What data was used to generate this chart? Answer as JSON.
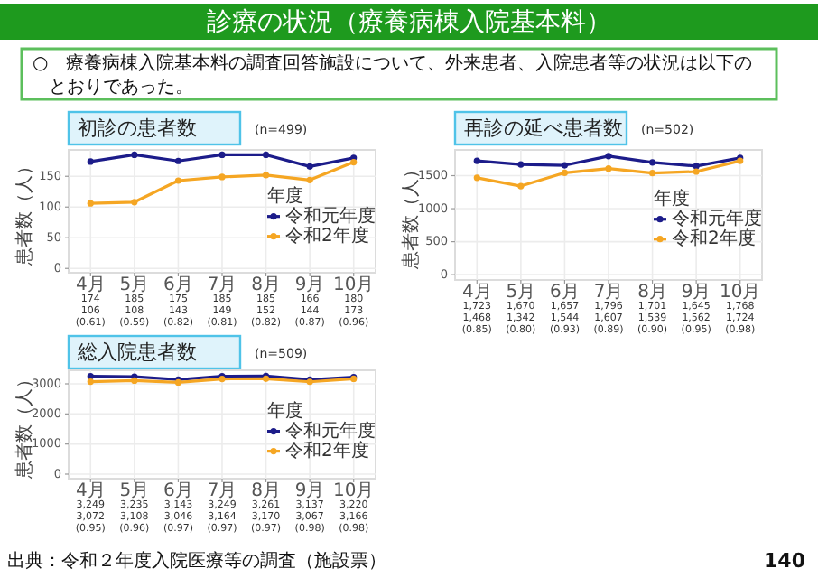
{
  "chart_data": [
    {
      "type": "line",
      "title": "初診の患者数",
      "subtitle": "(n=499)",
      "ylabel": "患者数（人）",
      "legend_title": "年度",
      "legend": "right",
      "grid": true,
      "marker": "circle",
      "categories": [
        "4月",
        "5月",
        "6月",
        "7月",
        "8月",
        "9月",
        "10月"
      ],
      "ylim": [
        -7,
        193
      ],
      "yticks": [
        0,
        50,
        100,
        150
      ],
      "series": [
        {
          "name": "令和元年度",
          "color": "#1c1c8a",
          "values": [
            174,
            185,
            175,
            185,
            185,
            166,
            180
          ],
          "value_labels": [
            "174",
            "185",
            "175",
            "185",
            "185",
            "166",
            "180"
          ]
        },
        {
          "name": "令和2年度",
          "color": "#f5a623",
          "values": [
            106,
            108,
            143,
            149,
            152,
            144,
            173
          ],
          "value_labels": [
            "106",
            "108",
            "143",
            "149",
            "152",
            "144",
            "173"
          ]
        }
      ],
      "annotations": [
        "診療の状況（療養病棟入院基本料）",
        "○　療養病棟入院基本料の調査回答施設について、外来患者、入院患者等の状況は以下のとおりであった。",
        "(0.61)",
        "(0.59)",
        "(0.82)",
        "(0.81)",
        "(0.82)",
        "(0.87)",
        "(0.96)"
      ]
    },
    {
      "type": "line",
      "title": "再診の延べ患者数",
      "subtitle": "(n=502)",
      "ylabel": "患者数（人）",
      "legend_title": "年度",
      "legend": "right",
      "grid": true,
      "marker": "circle",
      "categories": [
        "4月",
        "5月",
        "6月",
        "7月",
        "8月",
        "9月",
        "10月"
      ],
      "ylim": [
        -80,
        1890
      ],
      "yticks": [
        0,
        500,
        1000,
        1500
      ],
      "series": [
        {
          "name": "令和元年度",
          "color": "#1c1c8a",
          "values": [
            1723,
            1670,
            1657,
            1796,
            1701,
            1645,
            1768
          ],
          "value_labels": [
            "1,723",
            "1,670",
            "1,657",
            "1,796",
            "1,701",
            "1,645",
            "1,768"
          ]
        },
        {
          "name": "令和2年度",
          "color": "#f5a623",
          "values": [
            1468,
            1342,
            1544,
            1607,
            1539,
            1562,
            1724
          ],
          "value_labels": [
            "1,468",
            "1,342",
            "1,544",
            "1,607",
            "1,539",
            "1,562",
            "1,724"
          ]
        }
      ],
      "annotations": [
        "(0.85)",
        "(0.80)",
        "(0.93)",
        "(0.89)",
        "(0.90)",
        "(0.95)",
        "(0.98)"
      ]
    },
    {
      "type": "line",
      "title": "総入院患者数",
      "subtitle": "(n=509)",
      "ylabel": "患者数（人）",
      "legend_title": "年度",
      "legend": "right",
      "grid": true,
      "marker": "circle",
      "categories": [
        "4月",
        "5月",
        "6月",
        "7月",
        "8月",
        "9月",
        "10月"
      ],
      "ylim": [
        -150,
        3450
      ],
      "yticks": [
        0,
        1000,
        2000,
        3000
      ],
      "series": [
        {
          "name": "令和元年度",
          "color": "#1c1c8a",
          "values": [
            3249,
            3235,
            3143,
            3249,
            3261,
            3137,
            3220
          ],
          "value_labels": [
            "3,249",
            "3,235",
            "3,143",
            "3,249",
            "3,261",
            "3,137",
            "3,220"
          ]
        },
        {
          "name": "令和2年度",
          "color": "#f5a623",
          "values": [
            3072,
            3108,
            3046,
            3164,
            3170,
            3067,
            3166
          ],
          "value_labels": [
            "3,072",
            "3,108",
            "3,046",
            "3,164",
            "3,170",
            "3,067",
            "3,166"
          ]
        }
      ],
      "annotations": [
        "(0.95)",
        "(0.96)",
        "(0.97)",
        "(0.97)",
        "(0.97)",
        "(0.98)",
        "(0.98)",
        "出典：令和２年度入院医療等の調査（施設票）",
        "140"
      ]
    }
  ]
}
